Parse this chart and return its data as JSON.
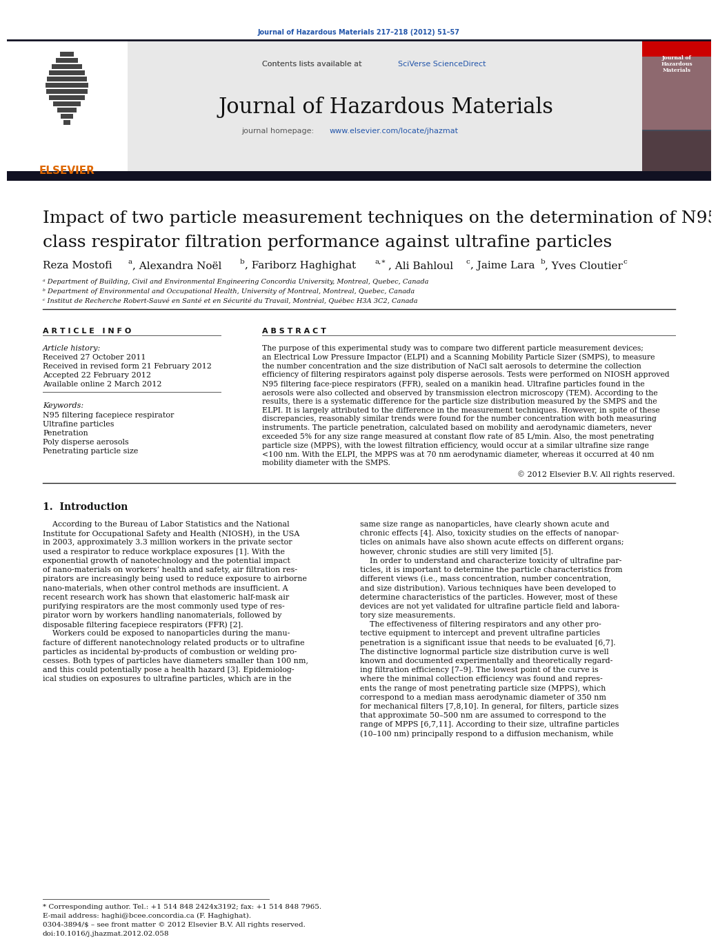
{
  "bg_color": "#ffffff",
  "top_journal_ref": "Journal of Hazardous Materials 217–218 (2012) 51–57",
  "journal_name": "Journal of Hazardous Materials",
  "homepage_url": "www.elsevier.com/locate/jhazmat",
  "article_title_line1": "Impact of two particle measurement techniques on the determination of N95",
  "article_title_line2": "class respirator filtration performance against ultrafine particles",
  "affil_a": "ᵃ Department of Building, Civil and Environmental Engineering Concordia University, Montreal, Quebec, Canada",
  "affil_b": "ᵇ Department of Environmental and Occupational Health, University of Montreal, Montreal, Quebec, Canada",
  "affil_c": "ᶜ Institut de Recherche Robert-Sauvé en Santé et en Sécurité du Travail, Montréal, Québec H3A 3C2, Canada",
  "article_info_header": "A R T I C L E   I N F O",
  "abstract_header": "A B S T R A C T",
  "article_history_label": "Article history:",
  "received1": "Received 27 October 2011",
  "received2": "Received in revised form 21 February 2012",
  "accepted": "Accepted 22 February 2012",
  "available": "Available online 2 March 2012",
  "keywords_label": "Keywords:",
  "kw1": "N95 filtering facepiece respirator",
  "kw2": "Ultrafine particles",
  "kw3": "Penetration",
  "kw4": "Poly disperse aerosols",
  "kw5": "Penetrating particle size",
  "copyright": "© 2012 Elsevier B.V. All rights reserved.",
  "intro_header": "1.  Introduction",
  "footer_note": "* Corresponding author. Tel.: +1 514 848 2424x3192; fax: +1 514 848 7965.",
  "footer_email": "E-mail address: haghi@bcee.concordia.ca (F. Haghighat).",
  "footer_copyright": "0304-3894/$ – see front matter © 2012 Elsevier B.V. All rights reserved.",
  "footer_doi": "doi:10.1016/j.jhazmat.2012.02.058",
  "link_color": "#2255aa",
  "elsevier_orange": "#dd6600",
  "dark_bar_color": "#111122",
  "gray_header_bg": "#e8e8e8",
  "text_color": "#111111",
  "abstract_lines": [
    "The purpose of this experimental study was to compare two different particle measurement devices;",
    "an Electrical Low Pressure Impactor (ELPI) and a Scanning Mobility Particle Sizer (SMPS), to measure",
    "the number concentration and the size distribution of NaCl salt aerosols to determine the collection",
    "efficiency of filtering respirators against poly disperse aerosols. Tests were performed on NIOSH approved",
    "N95 filtering face-piece respirators (FFR), sealed on a manikin head. Ultrafine particles found in the",
    "aerosols were also collected and observed by transmission electron microscopy (TEM). According to the",
    "results, there is a systematic difference for the particle size distribution measured by the SMPS and the",
    "ELPI. It is largely attributed to the difference in the measurement techniques. However, in spite of these",
    "discrepancies, reasonably similar trends were found for the number concentration with both measuring",
    "instruments. The particle penetration, calculated based on mobility and aerodynamic diameters, never",
    "exceeded 5% for any size range measured at constant flow rate of 85 L/min. Also, the most penetrating",
    "particle size (MPPS), with the lowest filtration efficiency, would occur at a similar ultrafine size range",
    "<100 nm. With the ELPI, the MPPS was at 70 nm aerodynamic diameter, whereas it occurred at 40 nm",
    "mobility diameter with the SMPS."
  ],
  "intro_col1_lines": [
    "    According to the Bureau of Labor Statistics and the National",
    "Institute for Occupational Safety and Health (NIOSH), in the USA",
    "in 2003, approximately 3.3 million workers in the private sector",
    "used a respirator to reduce workplace exposures [1]. With the",
    "exponential growth of nanotechnology and the potential impact",
    "of nano-materials on workers’ health and safety, air filtration res-",
    "pirators are increasingly being used to reduce exposure to airborne",
    "nano-materials, when other control methods are insufficient. A",
    "recent research work has shown that elastomeric half-mask air",
    "purifying respirators are the most commonly used type of res-",
    "pirator worn by workers handling nanomaterials, followed by",
    "disposable filtering facepiece respirators (FFR) [2].",
    "    Workers could be exposed to nanoparticles during the manu-",
    "facture of different nanotechnology related products or to ultrafine",
    "particles as incidental by-products of combustion or welding pro-",
    "cesses. Both types of particles have diameters smaller than 100 nm,",
    "and this could potentially pose a health hazard [3]. Epidemiolog-",
    "ical studies on exposures to ultrafine particles, which are in the"
  ],
  "intro_col2_lines": [
    "same size range as nanoparticles, have clearly shown acute and",
    "chronic effects [4]. Also, toxicity studies on the effects of nanopar-",
    "ticles on animals have also shown acute effects on different organs;",
    "however, chronic studies are still very limited [5].",
    "    In order to understand and characterize toxicity of ultrafine par-",
    "ticles, it is important to determine the particle characteristics from",
    "different views (i.e., mass concentration, number concentration,",
    "and size distribution). Various techniques have been developed to",
    "determine characteristics of the particles. However, most of these",
    "devices are not yet validated for ultrafine particle field and labora-",
    "tory size measurements.",
    "    The effectiveness of filtering respirators and any other pro-",
    "tective equipment to intercept and prevent ultrafine particles",
    "penetration is a significant issue that needs to be evaluated [6,7].",
    "The distinctive lognormal particle size distribution curve is well",
    "known and documented experimentally and theoretically regard-",
    "ing filtration efficiency [7–9]. The lowest point of the curve is",
    "where the minimal collection efficiency was found and repres-",
    "ents the range of most penetrating particle size (MPPS), which",
    "correspond to a median mass aerodynamic diameter of 350 nm",
    "for mechanical filters [7,8,10]. In general, for filters, particle sizes",
    "that approximate 50–500 nm are assumed to correspond to the",
    "range of MPPS [6,7,11]. According to their size, ultrafine particles",
    "(10–100 nm) principally respond to a diffusion mechanism, while"
  ]
}
